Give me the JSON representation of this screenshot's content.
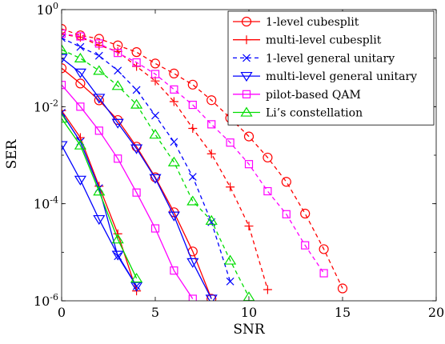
{
  "chart_data": {
    "type": "line",
    "title": "",
    "xlabel": "SNR",
    "ylabel": "SER",
    "xlim": [
      0,
      20
    ],
    "ylim": [
      1e-06,
      1
    ],
    "yscale": "log",
    "grid": false,
    "legend_position": "top-right",
    "xticks": [
      0,
      5,
      10,
      15,
      20
    ],
    "xtick_labels": [
      "0",
      "5",
      "10",
      "15",
      "20"
    ],
    "yticks": [
      1,
      0.01,
      0.0001,
      1e-06
    ],
    "ytick_labels": [
      {
        "base": "10",
        "exp": "0"
      },
      {
        "base": "10",
        "exp": "-2"
      },
      {
        "base": "10",
        "exp": "-4"
      },
      {
        "base": "10",
        "exp": "-6"
      }
    ],
    "series": [
      {
        "name": "1-level cubesplit",
        "color": "#ff0000",
        "marker": "circle",
        "line_style": "solid",
        "curves": [
          {
            "style": "solid",
            "x": [
              0,
              1,
              2,
              3,
              4,
              5,
              6,
              7,
              8
            ],
            "y": [
              0.062,
              0.03,
              0.0135,
              0.0053,
              0.0015,
              0.00035,
              6.68e-05,
              1.04e-05,
              1.1e-06
            ]
          },
          {
            "style": "dashed",
            "x": [
              0,
              1,
              2,
              3,
              4,
              5,
              6,
              7,
              8,
              9,
              10,
              11,
              12,
              13,
              14,
              15
            ],
            "y": [
              0.4,
              0.295,
              0.25,
              0.183,
              0.133,
              0.0775,
              0.0482,
              0.0284,
              0.0136,
              0.00583,
              0.00243,
              0.000895,
              0.000283,
              6.26e-05,
              1.16e-05,
              1.8e-06
            ]
          }
        ]
      },
      {
        "name": "multi-level cubesplit",
        "color": "#ff0000",
        "marker": "plus",
        "line_style": "solid",
        "curves": [
          {
            "style": "solid",
            "x": [
              0,
              1,
              2,
              3,
              4
            ],
            "y": [
              0.0083,
              0.0023,
              0.00023,
              2.4e-05,
              1.6e-06
            ]
          },
          {
            "style": "dashed",
            "x": [
              0,
              1,
              2,
              3,
              4,
              5,
              6,
              7,
              8,
              9,
              10,
              11
            ],
            "y": [
              0.31,
              0.27,
              0.184,
              0.137,
              0.0675,
              0.0339,
              0.0127,
              0.00357,
              0.00107,
              0.000221,
              3.47e-05,
              1.7e-06
            ]
          }
        ]
      },
      {
        "name": "1-level general unitary",
        "color": "#0000ff",
        "marker": "x",
        "line_style": "dashed",
        "curves": [
          {
            "style": "solid",
            "x": [
              0,
              1,
              2,
              3,
              4
            ],
            "y": [
              0.0075,
              0.0019,
              0.00021,
              8.3e-06,
              2e-06
            ]
          },
          {
            "style": "dashed",
            "x": [
              0,
              1,
              2,
              3,
              4,
              5,
              6,
              7,
              8,
              9
            ],
            "y": [
              0.26,
              0.17,
              0.112,
              0.0553,
              0.0221,
              0.00657,
              0.00188,
              0.000358,
              4.18e-05,
              2.5e-06
            ]
          }
        ]
      },
      {
        "name": "multi-level general unitary",
        "color": "#0000ff",
        "marker": "triangle-down",
        "line_style": "solid",
        "curves": [
          {
            "style": "solid",
            "x": [
              0,
              1,
              2,
              3,
              4,
              5,
              6,
              7,
              8
            ],
            "y": [
              0.1,
              0.05,
              0.0151,
              0.0046,
              0.00137,
              0.000335,
              5.65e-05,
              6.2e-06,
              1.1e-06
            ]
          },
          {
            "style": "solid",
            "x": [
              0,
              1,
              2,
              3,
              4
            ],
            "y": [
              0.0016,
              0.00031,
              4.78e-05,
              8.8e-06,
              2e-06
            ]
          }
        ]
      },
      {
        "name": "pilot-based QAM",
        "color": "#ff00ff",
        "marker": "square",
        "line_style": "solid",
        "curves": [
          {
            "style": "solid",
            "x": [
              0,
              1,
              2,
              3,
              4,
              5,
              6,
              7
            ],
            "y": [
              0.028,
              0.01,
              0.0032,
              0.00085,
              0.00017,
              3.1e-05,
              4.2e-06,
              1.1e-06
            ]
          },
          {
            "style": "dashed",
            "x": [
              0,
              1,
              2,
              3,
              4,
              5,
              6,
              7,
              8,
              9,
              10,
              11,
              12,
              13,
              14
            ],
            "y": [
              0.32,
              0.28,
              0.2,
              0.128,
              0.0816,
              0.047,
              0.0226,
              0.0109,
              0.00433,
              0.00182,
              0.000654,
              0.000181,
              6.08e-05,
              1.39e-05,
              3.7e-06
            ]
          }
        ]
      },
      {
        "name": "Li’s constellation",
        "color": "#00dd00",
        "marker": "triangle-up",
        "line_style": "solid",
        "curves": [
          {
            "style": "solid",
            "x": [
              0,
              1,
              2,
              3,
              4
            ],
            "y": [
              0.0057,
              0.0016,
              0.00018,
              1.85e-05,
              2.9e-06
            ]
          },
          {
            "style": "dashed",
            "x": [
              0,
              1,
              2,
              3,
              4,
              5,
              6,
              7,
              8,
              9,
              10
            ],
            "y": [
              0.149,
              0.0993,
              0.0552,
              0.0269,
              0.0111,
              0.00267,
              0.000719,
              0.000113,
              4.49e-05,
              6.8e-06,
              1.2e-06
            ]
          }
        ]
      }
    ]
  }
}
